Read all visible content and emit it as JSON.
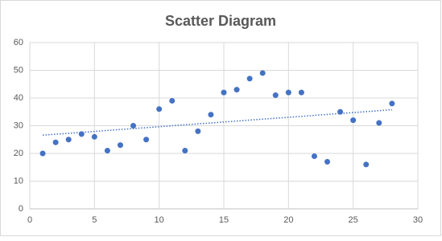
{
  "chart_data": {
    "type": "scatter",
    "title": "Scatter Diagram",
    "x": [
      1,
      2,
      3,
      4,
      5,
      6,
      7,
      8,
      9,
      10,
      11,
      12,
      13,
      14,
      15,
      16,
      17,
      18,
      19,
      20,
      21,
      22,
      23,
      24,
      25,
      26,
      27,
      28
    ],
    "series": [
      {
        "color": "#4472c4",
        "values": [
          20,
          24,
          25,
          27,
          26,
          21,
          23,
          30,
          25,
          36,
          39,
          21,
          28,
          34,
          42,
          43,
          47,
          49,
          41,
          42,
          42,
          19,
          17,
          35,
          32,
          16,
          31,
          38
        ]
      }
    ],
    "trendline": "linear",
    "xlim": [
      0,
      30
    ],
    "xticks": [
      0,
      5,
      10,
      15,
      20,
      25,
      30
    ],
    "ylim": [
      0,
      60
    ],
    "yticks": [
      0,
      10,
      20,
      30,
      40,
      50,
      60
    ],
    "grid": true
  }
}
